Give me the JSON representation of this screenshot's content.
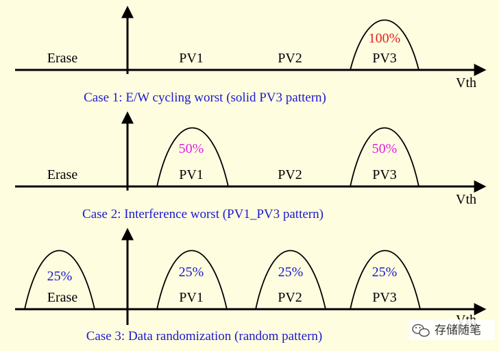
{
  "cases": [
    {
      "caption": "Case 1: E/W cycling worst (solid PV3 pattern)",
      "axis_label": "Vth",
      "states": [
        "Erase",
        "PV1",
        "PV2",
        "PV3"
      ],
      "peaks": [
        {
          "state": "PV3",
          "percent": "100%",
          "color": "#e0201c"
        }
      ]
    },
    {
      "caption": "Case 2: Interference worst (PV1_PV3 pattern)",
      "axis_label": "Vth",
      "states": [
        "Erase",
        "PV1",
        "PV2",
        "PV3"
      ],
      "peaks": [
        {
          "state": "PV1",
          "percent": "50%",
          "color": "#e020e0"
        },
        {
          "state": "PV3",
          "percent": "50%",
          "color": "#e020e0"
        }
      ]
    },
    {
      "caption": "Case 3: Data randomization (random pattern)",
      "axis_label": "Vth",
      "states": [
        "Erase",
        "PV1",
        "PV2",
        "PV3"
      ],
      "peaks": [
        {
          "state": "Erase",
          "percent": "25%",
          "color": "#1a1acc"
        },
        {
          "state": "PV1",
          "percent": "25%",
          "color": "#1a1acc"
        },
        {
          "state": "PV2",
          "percent": "25%",
          "color": "#1a1acc"
        },
        {
          "state": "PV3",
          "percent": "25%",
          "color": "#1a1acc"
        }
      ]
    }
  ],
  "watermark": {
    "icon": "wechat-icon",
    "text": "存储随笔"
  }
}
